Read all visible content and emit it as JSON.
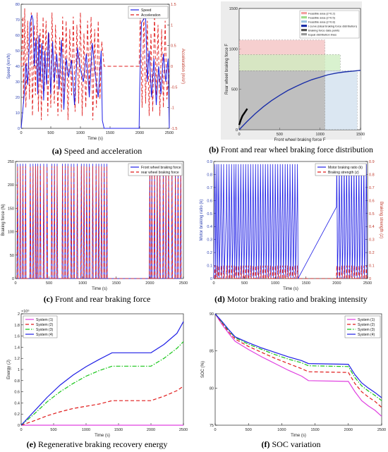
{
  "captions": {
    "a": {
      "letter": "(a)",
      "text": "Speed and acceleration"
    },
    "b": {
      "letter": "(b)",
      "text": "Front and rear wheel braking force distribution"
    },
    "c": {
      "letter": "(c)",
      "text": "Front and rear braking force"
    },
    "d": {
      "letter": "(d)",
      "text": "Motor braking ratio and braking intensity"
    },
    "e": {
      "letter": "(e)",
      "text": "Regenerative braking recovery energy"
    },
    "f": {
      "letter": "(f)",
      "text": "SOC variation"
    }
  },
  "chart_data": [
    {
      "id": "a",
      "type": "line",
      "xlabel": "Time (s)",
      "ylabel": "Speed (km/h)",
      "y2label": "Acceleration (m/s²)",
      "xlim": [
        0,
        2500
      ],
      "ylim": [
        0,
        80
      ],
      "y2lim": [
        -1.5,
        1.5
      ],
      "xticks": [
        0,
        500,
        1000,
        1500,
        2000,
        2500
      ],
      "yticks": [
        0,
        10,
        20,
        30,
        40,
        50,
        60,
        70,
        80
      ],
      "y2ticks": [
        -1.5,
        -1,
        -0.5,
        0,
        0.5,
        1,
        1.5
      ],
      "legend": "top-right",
      "colors": {
        "speed": "#1f1fe6",
        "accel": "#e01b1b"
      },
      "series": [
        {
          "name": "Speed",
          "axis": "left",
          "style": "solid",
          "x": [
            0,
            60,
            80,
            110,
            150,
            180,
            200,
            220,
            250,
            280,
            300,
            320,
            350,
            380,
            400,
            430,
            460,
            500,
            530,
            560,
            600,
            640,
            680,
            720,
            760,
            800,
            850,
            900,
            950,
            1000,
            1050,
            1100,
            1150,
            1200,
            1250,
            1300,
            1350,
            1370,
            1400,
            1990,
            2000,
            2010,
            2030,
            2060,
            2100,
            2130,
            2160,
            2200,
            2240,
            2280,
            2320,
            2360,
            2400,
            2440,
            2480,
            2500
          ],
          "values": [
            0,
            25,
            42,
            28,
            68,
            73,
            70,
            40,
            58,
            22,
            60,
            30,
            55,
            18,
            50,
            28,
            62,
            22,
            56,
            30,
            48,
            25,
            57,
            12,
            45,
            33,
            44,
            15,
            52,
            38,
            30,
            48,
            20,
            55,
            35,
            20,
            50,
            5,
            0,
            0,
            25,
            40,
            68,
            70,
            72,
            30,
            50,
            20,
            45,
            15,
            40,
            22,
            48,
            30,
            45,
            0
          ]
        },
        {
          "name": "Acceleration",
          "axis": "right",
          "style": "dashed",
          "x": [
            0,
            30,
            40,
            60,
            80,
            110,
            140,
            170,
            190,
            220,
            240,
            270,
            290,
            320,
            340,
            370,
            390,
            420,
            450,
            470,
            500,
            520,
            560,
            580,
            620,
            650,
            680,
            700,
            730,
            760,
            790,
            820,
            850,
            880,
            910,
            940,
            970,
            1000,
            1030,
            1060,
            1090,
            1120,
            1150,
            1180,
            1210,
            1240,
            1270,
            1300,
            1330,
            1360,
            1400,
            1990,
            2010,
            2040,
            2070,
            2100,
            2130,
            2160,
            2190,
            2220,
            2250,
            2280,
            2310,
            2340,
            2370,
            2400,
            2430,
            2460,
            2500
          ],
          "values": [
            0,
            1.2,
            -0.9,
            1.4,
            -1.0,
            1.1,
            -0.8,
            1.3,
            -1.2,
            1.0,
            -0.7,
            1.3,
            -1.1,
            0.9,
            -1.3,
            1.2,
            -0.6,
            1.1,
            -1.2,
            0.8,
            -1.0,
            1.3,
            -0.9,
            1.0,
            -1.2,
            0.7,
            -1.1,
            1.2,
            -0.8,
            1.1,
            -1.3,
            0.9,
            -0.7,
            1.2,
            -1.1,
            1.0,
            -0.9,
            1.3,
            -1.2,
            0.8,
            -1.0,
            1.1,
            -0.6,
            1.2,
            -1.3,
            0.9,
            -1.0,
            1.1,
            -0.8,
            0.6,
            0,
            0,
            1.2,
            -1.0,
            1.3,
            -0.9,
            1.1,
            -1.2,
            0.8,
            -1.1,
            1.3,
            -0.7,
            1.0,
            -1.2,
            0.9,
            -1.0,
            1.1,
            -0.8,
            0
          ]
        }
      ]
    },
    {
      "id": "b",
      "type": "line",
      "xlabel": "Front wheel braking force F",
      "ylabel": "Rear wheel braking force F",
      "xlim": [
        0,
        1500
      ],
      "ylim": [
        0,
        1500
      ],
      "xticks": [
        0,
        500,
        1000,
        1500
      ],
      "yticks": [
        0,
        500,
        1000,
        1500
      ],
      "legend": "top-right",
      "legend_entries": [
        "Feasible area (z=0.2)",
        "Feasible area (z=0.5)",
        "Feasible area (z=0.8)",
        "I curve (ideal braking force distribution)",
        "Braking force data points",
        "Equal distribution lines"
      ],
      "areas": [
        {
          "name": "Feasible area (z=0.2)",
          "x0": 0,
          "x1": 1060,
          "y0": 730,
          "y1": 1110,
          "color": "#f4c0c0"
        },
        {
          "name": "Feasible area (z=0.5)",
          "x0": 0,
          "x1": 1250,
          "y0": 730,
          "y1": 930,
          "color": "#cdeec0"
        },
        {
          "name": "Feasible area (z=0.8)",
          "x0": 1060,
          "x1": 1460,
          "y0": 0,
          "y1": 730,
          "color": "#cfe0ee"
        }
      ],
      "i_curve": {
        "x": [
          0,
          100,
          200,
          300,
          400,
          500,
          600,
          700,
          800,
          900,
          1000,
          1100,
          1200,
          1300,
          1400,
          1500
        ],
        "y": [
          0,
          105,
          200,
          285,
          360,
          425,
          485,
          535,
          580,
          620,
          650,
          680,
          700,
          715,
          725,
          735
        ]
      },
      "data_points": {
        "x": [
          0,
          20,
          40,
          60,
          80,
          100
        ],
        "y": [
          60,
          120,
          170,
          200,
          230,
          260
        ]
      }
    },
    {
      "id": "c",
      "type": "line",
      "xlabel": "Time (s)",
      "ylabel": "Braking force (N)",
      "xlim": [
        0,
        2500
      ],
      "ylim": [
        0,
        250
      ],
      "xticks": [
        0,
        500,
        1000,
        1500,
        2000,
        2500
      ],
      "yticks": [
        0,
        50,
        100,
        150,
        200,
        250
      ],
      "legend": "top-right",
      "series": [
        {
          "name": "Front wheel braking force",
          "color": "#1f1fe6",
          "style": "solid",
          "peaks_x": [
            30,
            70,
            110,
            150,
            220,
            260,
            300,
            330,
            370,
            420,
            470,
            540,
            580,
            620,
            700,
            740,
            780,
            830,
            870,
            920,
            980,
            1020,
            1060,
            1100,
            1150,
            1200,
            1240,
            1280,
            1320,
            1360,
            2000,
            2030,
            2070,
            2110,
            2150,
            2200,
            2240,
            2280,
            2330,
            2380,
            2420,
            2460
          ],
          "peak_value": 245
        },
        {
          "name": "rear wheel braking force",
          "color": "#e01b1b",
          "style": "dashed",
          "peaks_x": [
            30,
            70,
            110,
            150,
            220,
            260,
            300,
            330,
            370,
            420,
            470,
            540,
            580,
            620,
            700,
            740,
            780,
            830,
            870,
            920,
            980,
            1020,
            1060,
            1100,
            1150,
            1200,
            1240,
            1280,
            1320,
            1360,
            2000,
            2030,
            2070,
            2110,
            2150,
            2200,
            2240,
            2280,
            2330,
            2380,
            2420,
            2460
          ],
          "peak_value": 240
        }
      ]
    },
    {
      "id": "d",
      "type": "line",
      "xlabel": "Time (s)",
      "ylabel": "Motor braking ratio (k)",
      "y2label": "Braking strength (z)",
      "xlim": [
        0,
        2500
      ],
      "ylim": [
        0,
        0.9
      ],
      "y2lim": [
        0,
        0.9
      ],
      "xticks": [
        0,
        500,
        1000,
        1500,
        2000,
        2500
      ],
      "yticks": [
        0,
        0.1,
        0.2,
        0.3,
        0.4,
        0.5,
        0.6,
        0.7,
        0.8,
        0.9
      ],
      "y2ticks": [
        0,
        0.1,
        0.2,
        0.3,
        0.4,
        0.5,
        0.6,
        0.7,
        0.8,
        0.9
      ],
      "legend": "top-right",
      "series": [
        {
          "name": "Motor braking ratio (k)",
          "color": "#1f1fe6",
          "style": "solid",
          "baseline": 0.55,
          "peaks_x": [
            20,
            50,
            80,
            120,
            160,
            210,
            250,
            290,
            330,
            360,
            400,
            440,
            480,
            520,
            560,
            600,
            640,
            680,
            720,
            760,
            800,
            840,
            880,
            920,
            960,
            1000,
            1040,
            1080,
            1120,
            1160,
            1200,
            1240,
            1280,
            1320,
            1360,
            2000,
            2040,
            2080,
            2120,
            2160,
            2200,
            2240,
            2280,
            2320,
            2360,
            2400,
            2440,
            2480
          ],
          "peak_value": 0.88
        },
        {
          "name": "Braking strength (z)",
          "color": "#e01b1b",
          "style": "dashed",
          "baseline": 0.0,
          "peaks_x": [
            20,
            50,
            80,
            120,
            160,
            210,
            250,
            290,
            330,
            360,
            400,
            440,
            480,
            520,
            560,
            600,
            640,
            680,
            720,
            760,
            800,
            840,
            880,
            920,
            960,
            1000,
            1040,
            1080,
            1120,
            1160,
            1200,
            1240,
            1280,
            1320,
            1360,
            2000,
            2040,
            2080,
            2120,
            2160,
            2200,
            2240,
            2280,
            2320,
            2360,
            2400,
            2440,
            2480
          ],
          "peak_value": 0.1
        }
      ]
    },
    {
      "id": "e",
      "type": "line",
      "xlabel": "Time (s)",
      "ylabel": "Energy (J)",
      "exponent": "×10⁶",
      "xlim": [
        0,
        2500
      ],
      "ylim": [
        0,
        2
      ],
      "xticks": [
        0,
        500,
        1000,
        1500,
        2000,
        2500
      ],
      "yticks": [
        0,
        0.2,
        0.4,
        0.6,
        0.8,
        1,
        1.2,
        1.4,
        1.6,
        1.8,
        2
      ],
      "legend": "top-left",
      "series": [
        {
          "name": "System (1)",
          "color": "#e040e0",
          "style": "solid",
          "x": [
            0,
            2500
          ],
          "values": [
            0,
            0
          ]
        },
        {
          "name": "System (2)",
          "color": "#e01b1b",
          "style": "dashed",
          "x": [
            0,
            200,
            400,
            600,
            800,
            1000,
            1200,
            1400,
            2000,
            2200,
            2400,
            2500
          ],
          "values": [
            0,
            0.08,
            0.17,
            0.24,
            0.3,
            0.34,
            0.38,
            0.44,
            0.44,
            0.52,
            0.62,
            0.7
          ]
        },
        {
          "name": "System (3)",
          "color": "#17c617",
          "style": "dashdot",
          "x": [
            0,
            200,
            400,
            600,
            800,
            1000,
            1200,
            1400,
            2000,
            2200,
            2400,
            2500
          ],
          "values": [
            0,
            0.2,
            0.42,
            0.6,
            0.75,
            0.88,
            0.98,
            1.06,
            1.06,
            1.2,
            1.38,
            1.5
          ]
        },
        {
          "name": "System (4)",
          "color": "#1f1fe6",
          "style": "solid",
          "x": [
            0,
            200,
            400,
            600,
            800,
            1000,
            1200,
            1400,
            2000,
            2200,
            2400,
            2500
          ],
          "values": [
            0,
            0.25,
            0.5,
            0.72,
            0.9,
            1.05,
            1.18,
            1.3,
            1.3,
            1.45,
            1.65,
            1.86
          ]
        }
      ]
    },
    {
      "id": "f",
      "type": "line",
      "xlabel": "Time (s)",
      "ylabel": "SOC (%)",
      "xlim": [
        0,
        2500
      ],
      "ylim": [
        75,
        90
      ],
      "xticks": [
        0,
        500,
        1000,
        1500,
        2000,
        2500
      ],
      "yticks": [
        75,
        80,
        85,
        90
      ],
      "legend": "top-right",
      "series": [
        {
          "name": "System (1)",
          "color": "#e040e0",
          "style": "solid",
          "x": [
            0,
            100,
            200,
            300,
            500,
            700,
            900,
            1100,
            1300,
            1400,
            2000,
            2100,
            2200,
            2300,
            2400,
            2500
          ],
          "values": [
            90,
            88.6,
            87.4,
            86.3,
            85.2,
            84.2,
            83.3,
            82.4,
            81.6,
            81.0,
            80.9,
            79.5,
            78.3,
            77.6,
            77.0,
            76.2
          ]
        },
        {
          "name": "System (2)",
          "color": "#e01b1b",
          "style": "dashed",
          "x": [
            0,
            100,
            200,
            300,
            500,
            700,
            900,
            1100,
            1300,
            1400,
            2000,
            2100,
            2200,
            2300,
            2400,
            2500
          ],
          "values": [
            90,
            88.8,
            87.6,
            86.6,
            85.6,
            84.8,
            84.0,
            83.3,
            82.6,
            82.2,
            82.1,
            80.6,
            79.5,
            78.8,
            78.2,
            77.4
          ]
        },
        {
          "name": "System (3)",
          "color": "#17c617",
          "style": "dashdot",
          "x": [
            0,
            100,
            200,
            300,
            500,
            700,
            900,
            1100,
            1300,
            1400,
            2000,
            2100,
            2200,
            2300,
            2400,
            2500
          ],
          "values": [
            90,
            88.9,
            87.8,
            86.8,
            85.9,
            85.2,
            84.5,
            83.9,
            83.4,
            83.0,
            82.9,
            81.4,
            80.3,
            79.6,
            79.0,
            78.3
          ]
        },
        {
          "name": "System (4)",
          "color": "#1f1fe6",
          "style": "solid",
          "x": [
            0,
            100,
            200,
            300,
            500,
            700,
            900,
            1100,
            1300,
            1400,
            2000,
            2100,
            2200,
            2300,
            2400,
            2500
          ],
          "values": [
            90,
            89.0,
            87.9,
            86.9,
            86.1,
            85.4,
            84.8,
            84.2,
            83.7,
            83.3,
            83.2,
            81.8,
            80.7,
            80.0,
            79.4,
            78.7
          ]
        }
      ]
    }
  ]
}
